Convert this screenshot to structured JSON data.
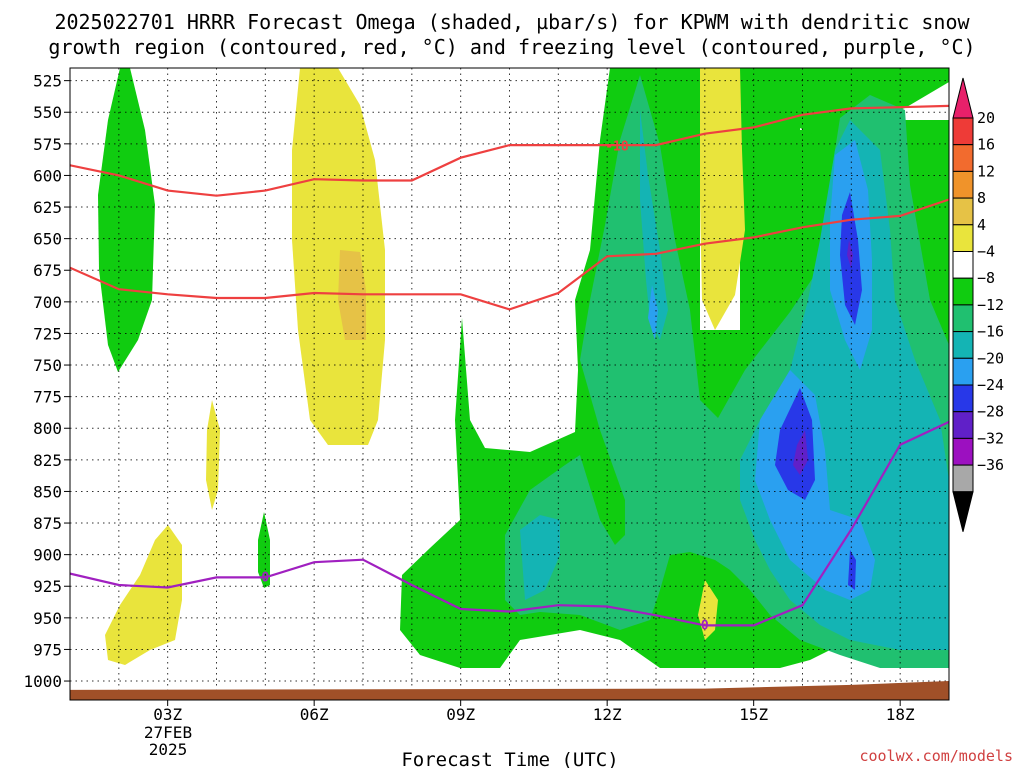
{
  "chart_data": {
    "type": "heatmap",
    "title_line1": "2025022701 HRRR Forecast Omega (shaded, µbar/s) for KPWM with dendritic snow",
    "title_line2": "growth region (contoured, red, °C) and freezing level (contoured, purple, °C)",
    "xlabel": "Forecast Time (UTC)",
    "x_ticks": [
      "03Z",
      "06Z",
      "09Z",
      "12Z",
      "15Z",
      "18Z"
    ],
    "x_tick_hours": [
      3,
      6,
      9,
      12,
      15,
      18
    ],
    "x_date_lines": [
      "27FEB",
      "2025"
    ],
    "xlim": [
      1,
      19
    ],
    "y_ticks": [
      525,
      550,
      575,
      600,
      625,
      650,
      675,
      700,
      725,
      750,
      775,
      800,
      825,
      850,
      875,
      900,
      925,
      950,
      975,
      1000
    ],
    "ylim": [
      1015,
      515
    ],
    "colorbar_levels": [
      "20",
      "16",
      "12",
      "8",
      "4",
      "−4",
      "−8",
      "−12",
      "−16",
      "−20",
      "−24",
      "−28",
      "−32",
      "−36"
    ],
    "colorbar_colors": [
      "#e8206a",
      "#ee3b37",
      "#f26b2e",
      "#f0932a",
      "#e6c246",
      "#e9e43c",
      "#ffffff",
      "#10cc10",
      "#20c070",
      "#14b4b4",
      "#2aa0f0",
      "#2838e8",
      "#6020c8",
      "#9c10c0",
      "#a8a8a8",
      "#000000"
    ],
    "contour_minus18_label": "-18",
    "contour_minus12_label": "-12",
    "freezing_level_label": "0",
    "dgz_upper_isotherm": {
      "name": "-18",
      "color": "#ee4040",
      "x": [
        1,
        2,
        3,
        4,
        5,
        6,
        7,
        8,
        9,
        10,
        11,
        12,
        13,
        14,
        15,
        16,
        17,
        18,
        19
      ],
      "p": [
        592,
        600,
        612,
        616,
        612,
        603,
        604,
        604,
        586,
        576,
        576,
        576,
        576,
        567,
        562,
        552,
        547,
        546,
        545
      ]
    },
    "dgz_lower_isotherm": {
      "name": "-12",
      "color": "#ee4040",
      "x": [
        1,
        2,
        3,
        4,
        5,
        6,
        7,
        8,
        9,
        10,
        11,
        12,
        13,
        14,
        15,
        16,
        17,
        18,
        19
      ],
      "p": [
        673,
        690,
        694,
        697,
        697,
        693,
        694,
        694,
        694,
        706,
        693,
        664,
        662,
        654,
        649,
        641,
        635,
        632,
        619
      ]
    },
    "freezing_level": {
      "name": "0",
      "color": "#a020c0",
      "x": [
        1,
        2,
        3,
        4,
        5,
        6,
        7,
        8,
        9,
        10,
        11,
        12,
        13,
        14,
        15,
        16,
        17,
        18,
        19
      ],
      "p": [
        915,
        924,
        926,
        918,
        918,
        906,
        904,
        924,
        943,
        945,
        940,
        941,
        948,
        956,
        956,
        940,
        880,
        813,
        795
      ]
    },
    "terrain_color": "#a05028"
  },
  "credit": "coolwx.com/models"
}
